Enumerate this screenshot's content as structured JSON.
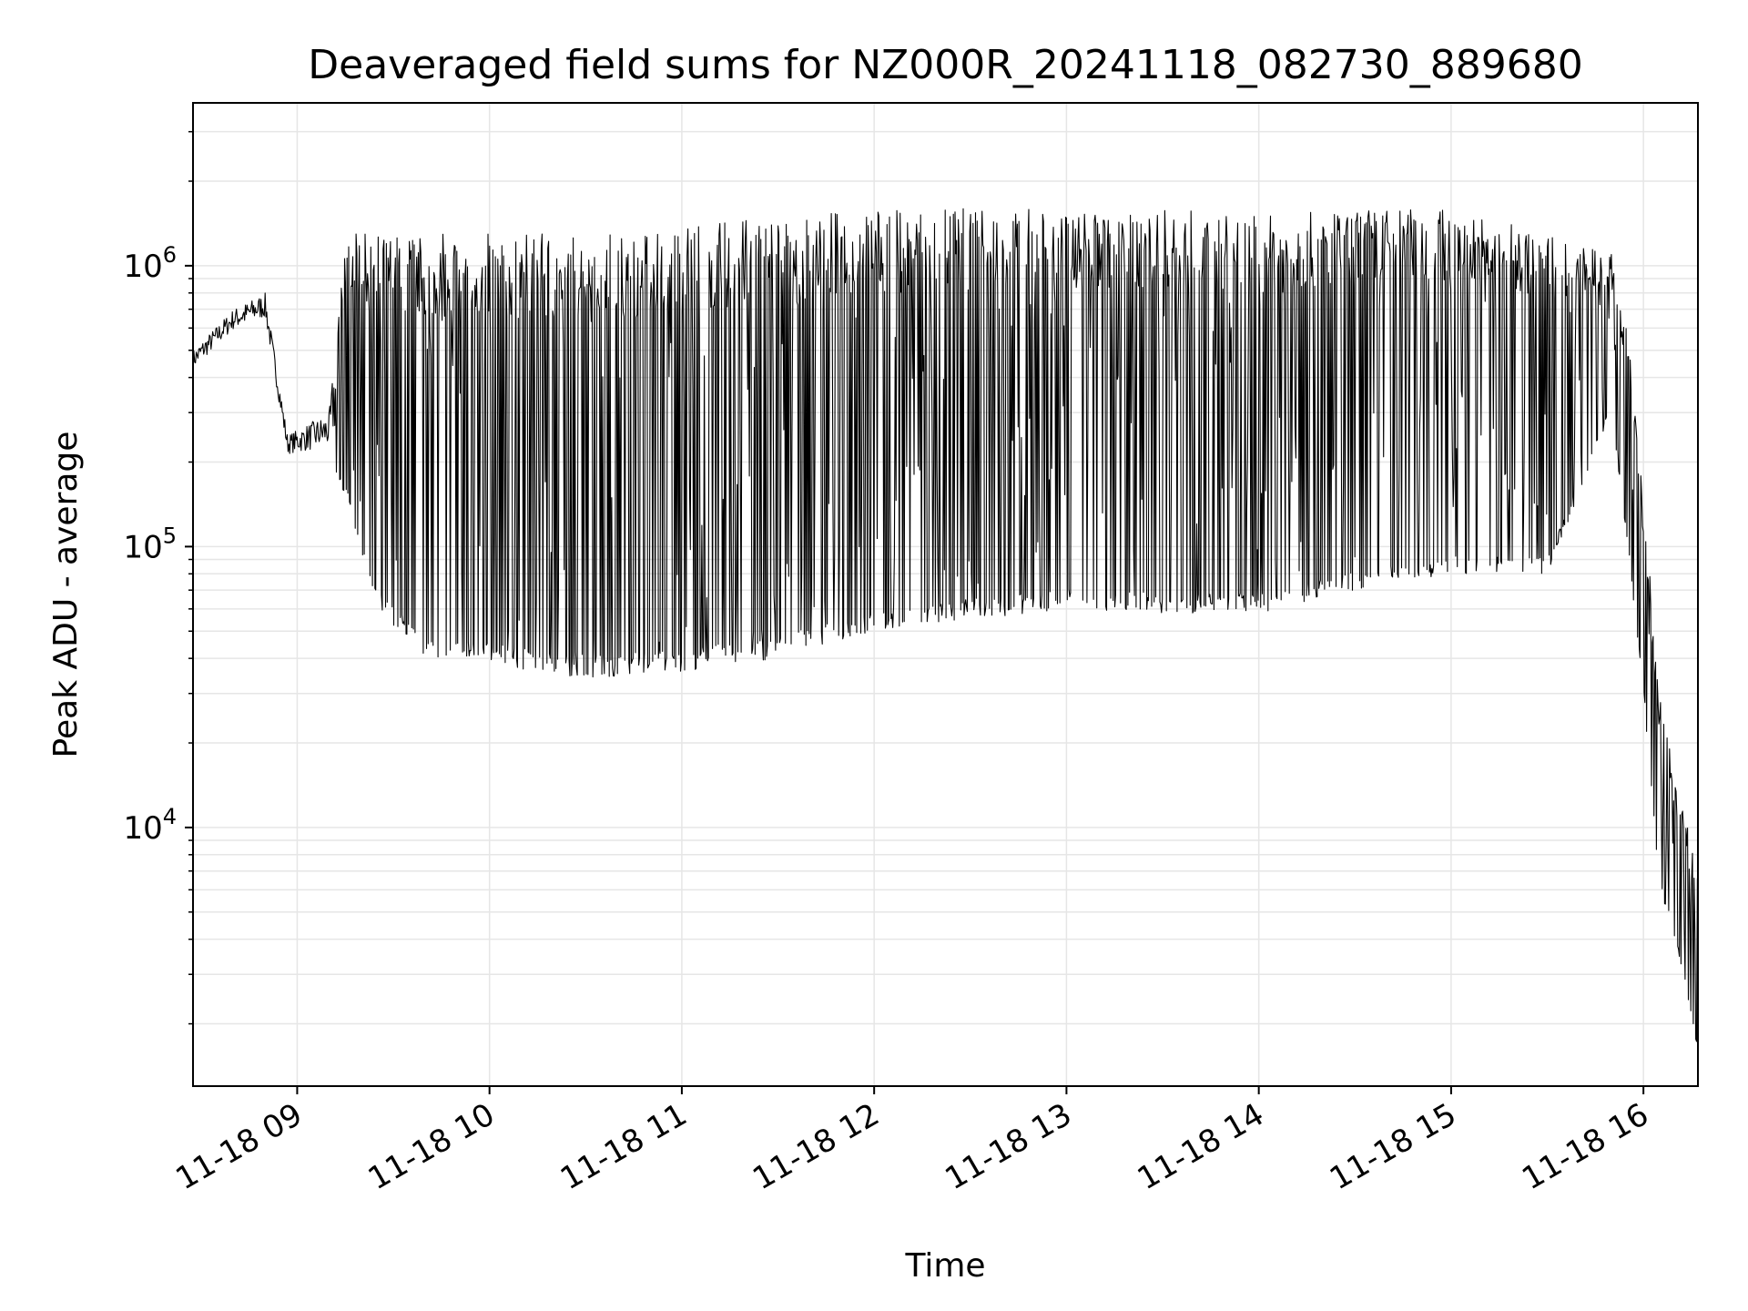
{
  "chart_data": {
    "type": "line",
    "title": "Deaveraged field sums for NZ000R_20241118_082730_889680",
    "xlabel": "Time",
    "ylabel": "Peak ADU - average",
    "y_scale": "log",
    "ylim": [
      1200,
      3800000
    ],
    "xlim": [
      "2024-11-18 08:27:30",
      "2024-11-18 16:17:00"
    ],
    "grid": true,
    "line_color": "#000000",
    "grid_color": "#e6e6e6",
    "y_ticks": [
      {
        "value": 10000,
        "base": "10",
        "exp": "4"
      },
      {
        "value": 100000,
        "base": "10",
        "exp": "5"
      },
      {
        "value": 1000000,
        "base": "10",
        "exp": "6"
      }
    ],
    "x_ticks": [
      {
        "value": "2024-11-18 09:00",
        "label": "11-18 09"
      },
      {
        "value": "2024-11-18 10:00",
        "label": "11-18 10"
      },
      {
        "value": "2024-11-18 11:00",
        "label": "11-18 11"
      },
      {
        "value": "2024-11-18 12:00",
        "label": "11-18 12"
      },
      {
        "value": "2024-11-18 13:00",
        "label": "11-18 13"
      },
      {
        "value": "2024-11-18 14:00",
        "label": "11-18 14"
      },
      {
        "value": "2024-11-18 15:00",
        "label": "11-18 15"
      },
      {
        "value": "2024-11-18 16:00",
        "label": "11-18 16"
      }
    ],
    "series": [
      {
        "x": [
          "2024-11-18 08:27:30",
          "2024-11-18 08:40",
          "2024-11-18 08:50",
          "2024-11-18 08:57",
          "2024-11-18 09:10",
          "2024-11-18 09:15",
          "2024-11-18 09:25",
          "2024-11-18 09:40",
          "2024-11-18 10:00",
          "2024-11-18 10:30",
          "2024-11-18 11:00",
          "2024-11-18 11:30",
          "2024-11-18 12:00",
          "2024-11-18 12:30",
          "2024-11-18 13:00",
          "2024-11-18 13:30",
          "2024-11-18 14:00",
          "2024-11-18 14:30",
          "2024-11-18 15:00",
          "2024-11-18 15:30",
          "2024-11-18 15:50",
          "2024-11-18 15:55",
          "2024-11-18 16:00",
          "2024-11-18 16:05",
          "2024-11-18 16:10",
          "2024-11-18 16:17"
        ],
        "high": [
          500000,
          700000,
          800000,
          250000,
          300000,
          1300000,
          1300000,
          1300000,
          1300000,
          1300000,
          1400000,
          1500000,
          1600000,
          1600000,
          1600000,
          1600000,
          1500000,
          1600000,
          1600000,
          1300000,
          1100000,
          600000,
          150000,
          30000,
          15000,
          7000
        ],
        "low": [
          400000,
          550000,
          600000,
          200000,
          200000,
          150000,
          60000,
          40000,
          38000,
          34000,
          36000,
          40000,
          50000,
          55000,
          60000,
          58000,
          58000,
          70000,
          80000,
          80000,
          300000,
          100000,
          30000,
          6000,
          4000,
          1600
        ]
      }
    ],
    "notes": []
  }
}
